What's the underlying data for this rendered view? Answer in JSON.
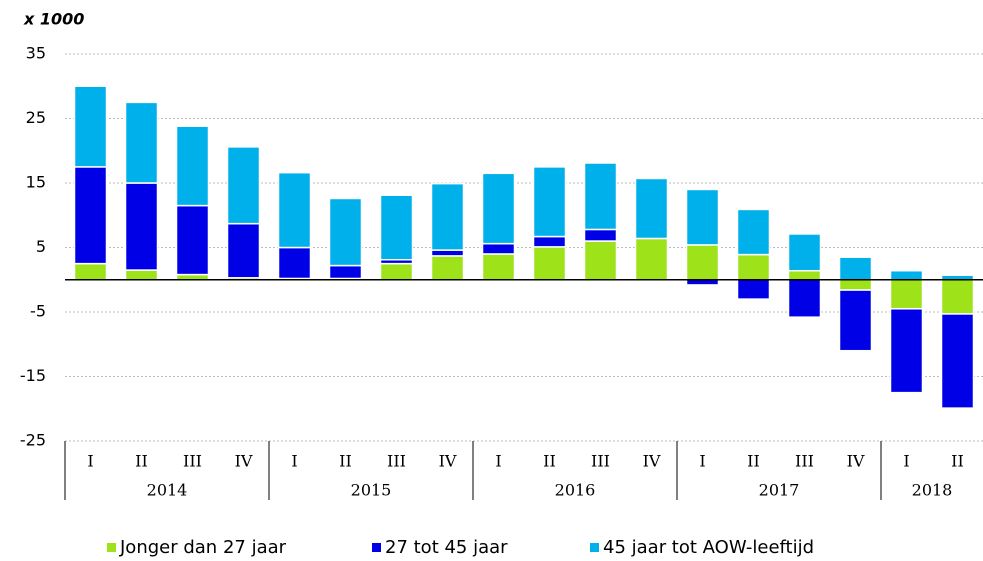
{
  "chart_data": {
    "type": "stacked_bar",
    "unit_label": "x 1000",
    "categories": [
      "I",
      "II",
      "III",
      "IV",
      "I",
      "II",
      "III",
      "IV",
      "I",
      "II",
      "III",
      "IV",
      "I",
      "II",
      "III",
      "IV",
      "I",
      "II"
    ],
    "groups": [
      {
        "name": "2014",
        "count": 4
      },
      {
        "name": "2015",
        "count": 4
      },
      {
        "name": "2016",
        "count": 4
      },
      {
        "name": "2017",
        "count": 4
      },
      {
        "name": "2018",
        "count": 2
      }
    ],
    "series": [
      {
        "name": "Jonger dan 27 jaar",
        "color": "#9ee21a",
        "values": [
          2.5,
          1.5,
          0.8,
          0.3,
          0.2,
          0.2,
          2.5,
          3.7,
          4,
          5.1,
          6,
          6.4,
          5.4,
          3.9,
          1.4,
          -1.6,
          -4.5,
          -5.3
        ]
      },
      {
        "name": "27 tot 45 jaar",
        "color": "#0000e6",
        "values": [
          15,
          13.5,
          10.7,
          8.4,
          4.8,
          2,
          0.6,
          0.9,
          1.6,
          1.6,
          1.8,
          0,
          -0.8,
          -3,
          -5.8,
          -9.4,
          -13,
          -14.6
        ]
      },
      {
        "name": "45 jaar tot AOW-leeftijd",
        "color": "#00b0ea",
        "values": [
          12.5,
          12.5,
          12.3,
          11.9,
          11.6,
          10.4,
          10,
          10.3,
          10.9,
          10.8,
          10.3,
          9.3,
          8.6,
          7,
          5.7,
          3.5,
          1.4,
          0.7
        ]
      }
    ],
    "ylim": [
      -25,
      35
    ],
    "yticks": [
      35,
      25,
      15,
      5,
      -5,
      -15,
      -25
    ],
    "grid": true
  }
}
